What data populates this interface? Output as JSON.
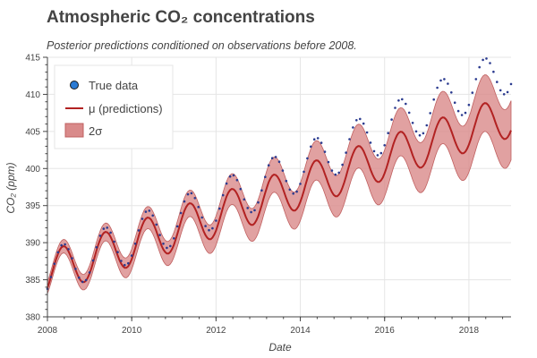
{
  "chart_data": {
    "type": "line",
    "title": "Atmospheric CO₂ concentrations",
    "subtitle": "Posterior predictions conditioned on observations before 2008.",
    "xlabel": "Date",
    "ylabel": "CO₂ (ppm)",
    "xlim": [
      2008,
      2019
    ],
    "ylim": [
      380,
      415
    ],
    "x_ticks": [
      "2008",
      "2010",
      "2012",
      "2014",
      "2016",
      "2018"
    ],
    "y_ticks": [
      "380",
      "385",
      "390",
      "395",
      "400",
      "405",
      "410",
      "415"
    ],
    "grid": true,
    "legend": {
      "placement": "top-left",
      "entries": [
        "True data",
        "μ (predictions)",
        "2σ"
      ]
    },
    "colors": {
      "true_data": "#2b3b8f",
      "prediction_line": "#b22222",
      "band_fill": "#d98a8a",
      "band_edge": "#c06060"
    },
    "series": [
      {
        "name": "True data",
        "kind": "points",
        "model": {
          "base_2008": 385.9,
          "growth_per_year": 2.18,
          "seasonal_amplitude": 3.1,
          "peak_month_fraction": 0.37,
          "points_per_year": 12
        }
      },
      {
        "name": "μ (predictions)",
        "kind": "line",
        "model": {
          "base_2008": 385.9,
          "growth_per_year": 1.93,
          "seasonal_amplitude": 2.9,
          "peak_month_fraction": 0.37,
          "samples_per_year": 24
        }
      },
      {
        "name": "2σ",
        "kind": "band",
        "model": {
          "half_width_2008": 0.8,
          "half_width_2019": 4.0
        }
      }
    ]
  }
}
